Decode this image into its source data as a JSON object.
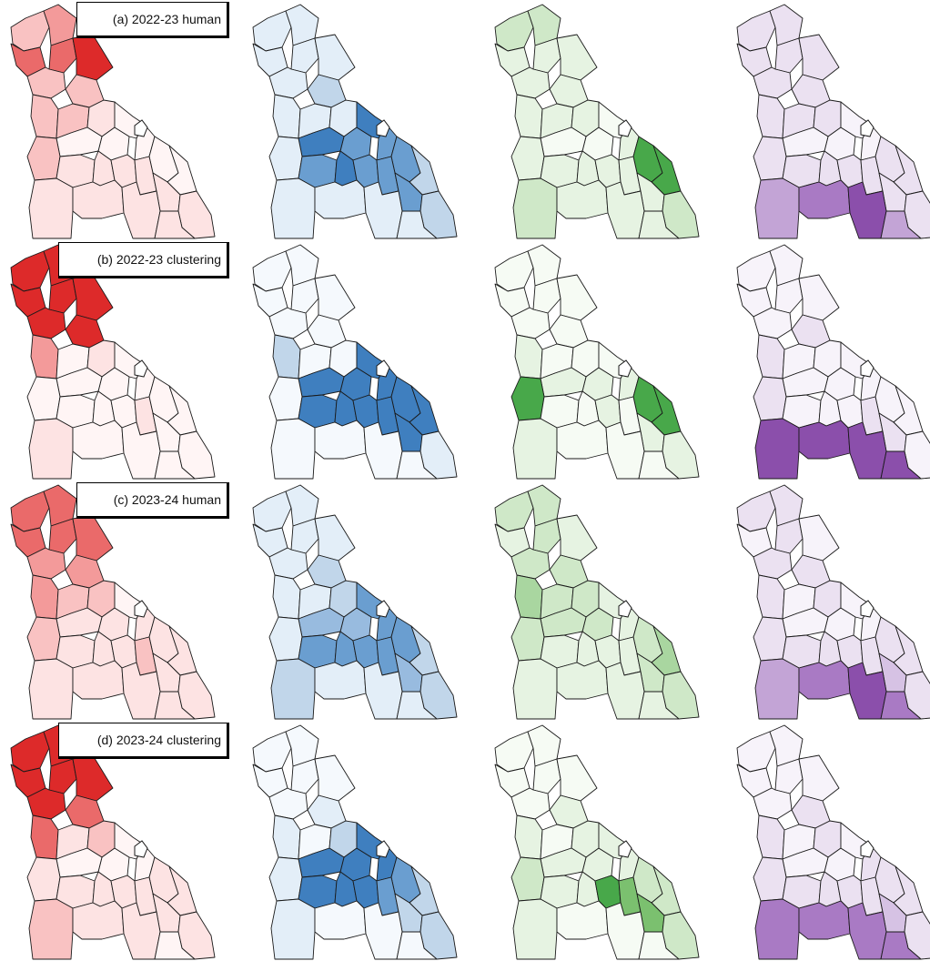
{
  "colors": {
    "red": [
      "#fff5f5",
      "#fde3e3",
      "#f9c2c2",
      "#f39a9a",
      "#ea6a6a",
      "#dd2a2a"
    ],
    "blue": [
      "#f5f9fd",
      "#e3eef8",
      "#c1d6ea",
      "#98bbdf",
      "#6a9ed0",
      "#3f7fbf"
    ],
    "green": [
      "#f6fbf4",
      "#e6f3e2",
      "#cfe8c8",
      "#a9d6a0",
      "#7bc06f",
      "#48a84a"
    ],
    "purple": [
      "#f7f3fa",
      "#ebe1f1",
      "#d6c2e4",
      "#c3a4d6",
      "#a97ac4",
      "#8b4fab"
    ]
  },
  "rows": [
    {
      "label": "(a) 2022-23 human",
      "panels": [
        {
          "scheme": "red",
          "values": [
            0.45,
            0.5,
            0.85,
            0.8,
            0.95,
            0.42,
            0.3,
            0.45,
            0.35,
            0.1,
            0.05,
            0.0,
            0.05,
            0.05,
            0.05,
            0.05,
            0.3,
            0.2,
            0.25,
            0.2,
            0.25,
            0.15,
            0.15,
            0.2,
            0.25,
            0.15,
            0.1
          ]
        },
        {
          "scheme": "blue",
          "values": [
            0.15,
            0.15,
            0.1,
            0.15,
            0.1,
            0.1,
            0.35,
            0.1,
            0.1,
            0.15,
            0.85,
            0.9,
            0.9,
            0.85,
            0.85,
            0.35,
            0.1,
            0.85,
            0.9,
            0.85,
            0.8,
            0.8,
            0.3,
            0.25,
            0.1,
            0.1,
            0.1
          ]
        },
        {
          "scheme": "green",
          "values": [
            0.3,
            0.3,
            0.15,
            0.2,
            0.15,
            0.25,
            0.2,
            0.25,
            0.15,
            0.1,
            0.05,
            0.05,
            0.05,
            0.1,
            0.95,
            0.9,
            0.25,
            0.1,
            0.15,
            0.15,
            0.15,
            0.2,
            0.45,
            0.4,
            0.15,
            0.15,
            0.15
          ]
        },
        {
          "scheme": "purple",
          "values": [
            0.15,
            0.15,
            0.1,
            0.15,
            0.1,
            0.1,
            0.1,
            0.15,
            0.1,
            0.1,
            0.05,
            0.0,
            0.05,
            0.05,
            0.1,
            0.15,
            0.1,
            0.1,
            0.1,
            0.1,
            0.15,
            0.2,
            0.15,
            0.5,
            0.85,
            0.95,
            0.55
          ]
        }
      ]
    },
    {
      "label": "(b) 2022-23 clustering",
      "panels": [
        {
          "scheme": "red",
          "values": [
            0.95,
            0.95,
            0.95,
            0.95,
            0.95,
            0.95,
            0.95,
            0.6,
            0.0,
            0.1,
            0.0,
            0.0,
            0.0,
            0.0,
            0.0,
            0.0,
            0.05,
            0.0,
            0.05,
            0.05,
            0.1,
            0.05,
            0.0,
            0.1,
            0.05,
            0.0,
            0.0
          ]
        },
        {
          "scheme": "blue",
          "values": [
            0.0,
            0.0,
            0.0,
            0.0,
            0.0,
            0.0,
            0.0,
            0.3,
            0.0,
            0.0,
            0.95,
            0.95,
            0.95,
            0.95,
            0.95,
            0.9,
            0.0,
            0.95,
            0.95,
            0.9,
            0.95,
            0.9,
            0.2,
            0.0,
            0.05,
            0.05,
            0.05
          ]
        },
        {
          "scheme": "green",
          "values": [
            0.0,
            0.0,
            0.0,
            0.0,
            0.0,
            0.0,
            0.05,
            0.1,
            0.05,
            0.05,
            0.1,
            0.05,
            0.15,
            0.1,
            0.95,
            0.95,
            0.95,
            0.05,
            0.05,
            0.1,
            0.05,
            0.1,
            0.1,
            0.2,
            0.0,
            0.05,
            0.05
          ]
        },
        {
          "scheme": "purple",
          "values": [
            0.0,
            0.0,
            0.0,
            0.0,
            0.0,
            0.0,
            0.1,
            0.15,
            0.0,
            0.0,
            0.0,
            0.0,
            0.0,
            0.0,
            0.0,
            0.0,
            0.1,
            0.0,
            0.0,
            0.0,
            0.15,
            0.15,
            0.0,
            0.9,
            0.95,
            0.95,
            0.9
          ]
        }
      ]
    },
    {
      "label": "(c) 2023-24 human",
      "panels": [
        {
          "scheme": "red",
          "values": [
            0.7,
            0.7,
            0.7,
            0.8,
            0.8,
            0.6,
            0.65,
            0.5,
            0.45,
            0.3,
            0.1,
            0.05,
            0.1,
            0.1,
            0.2,
            0.25,
            0.3,
            0.25,
            0.2,
            0.25,
            0.3,
            0.2,
            0.2,
            0.25,
            0.2,
            0.15,
            0.1
          ]
        },
        {
          "scheme": "blue",
          "values": [
            0.2,
            0.25,
            0.15,
            0.2,
            0.15,
            0.2,
            0.35,
            0.25,
            0.15,
            0.3,
            0.6,
            0.75,
            0.65,
            0.75,
            0.7,
            0.35,
            0.15,
            0.75,
            0.8,
            0.75,
            0.7,
            0.6,
            0.3,
            0.35,
            0.1,
            0.15,
            0.1
          ]
        },
        {
          "scheme": "green",
          "values": [
            0.4,
            0.35,
            0.2,
            0.3,
            0.25,
            0.35,
            0.45,
            0.55,
            0.3,
            0.35,
            0.35,
            0.25,
            0.3,
            0.25,
            0.45,
            0.5,
            0.3,
            0.2,
            0.25,
            0.2,
            0.25,
            0.3,
            0.35,
            0.25,
            0.15,
            0.2,
            0.15
          ]
        },
        {
          "scheme": "purple",
          "values": [
            0.1,
            0.1,
            0.05,
            0.1,
            0.05,
            0.1,
            0.1,
            0.1,
            0.05,
            0.1,
            0.05,
            0.0,
            0.05,
            0.05,
            0.1,
            0.15,
            0.1,
            0.1,
            0.1,
            0.1,
            0.15,
            0.3,
            0.2,
            0.6,
            0.85,
            0.9,
            0.8
          ]
        }
      ]
    },
    {
      "label": "(d) 2023-24 clustering",
      "panels": [
        {
          "scheme": "red",
          "values": [
            0.9,
            0.9,
            0.9,
            0.95,
            0.9,
            0.9,
            0.85,
            0.8,
            0.2,
            0.45,
            0.05,
            0.0,
            0.05,
            0.05,
            0.1,
            0.2,
            0.2,
            0.1,
            0.1,
            0.15,
            0.2,
            0.1,
            0.25,
            0.3,
            0.15,
            0.1,
            0.05
          ]
        },
        {
          "scheme": "blue",
          "values": [
            0.05,
            0.05,
            0.05,
            0.05,
            0.05,
            0.05,
            0.1,
            0.2,
            0.05,
            0.3,
            0.9,
            0.95,
            0.9,
            0.9,
            0.85,
            0.35,
            0.1,
            0.95,
            0.95,
            0.9,
            0.85,
            0.35,
            0.4,
            0.1,
            0.05,
            0.05,
            0.05
          ]
        },
        {
          "scheme": "green",
          "values": [
            0.05,
            0.05,
            0.05,
            0.05,
            0.05,
            0.05,
            0.1,
            0.1,
            0.05,
            0.1,
            0.15,
            0.1,
            0.15,
            0.15,
            0.3,
            0.45,
            0.3,
            0.2,
            0.25,
            0.95,
            0.85,
            0.8,
            0.4,
            0.1,
            0.05,
            0.05,
            0.05
          ]
        },
        {
          "scheme": "purple",
          "values": [
            0.05,
            0.05,
            0.05,
            0.05,
            0.05,
            0.05,
            0.1,
            0.1,
            0.05,
            0.1,
            0.05,
            0.0,
            0.05,
            0.1,
            0.15,
            0.2,
            0.25,
            0.1,
            0.15,
            0.15,
            0.2,
            0.3,
            0.25,
            0.8,
            0.85,
            0.75,
            0.7
          ]
        }
      ]
    }
  ]
}
